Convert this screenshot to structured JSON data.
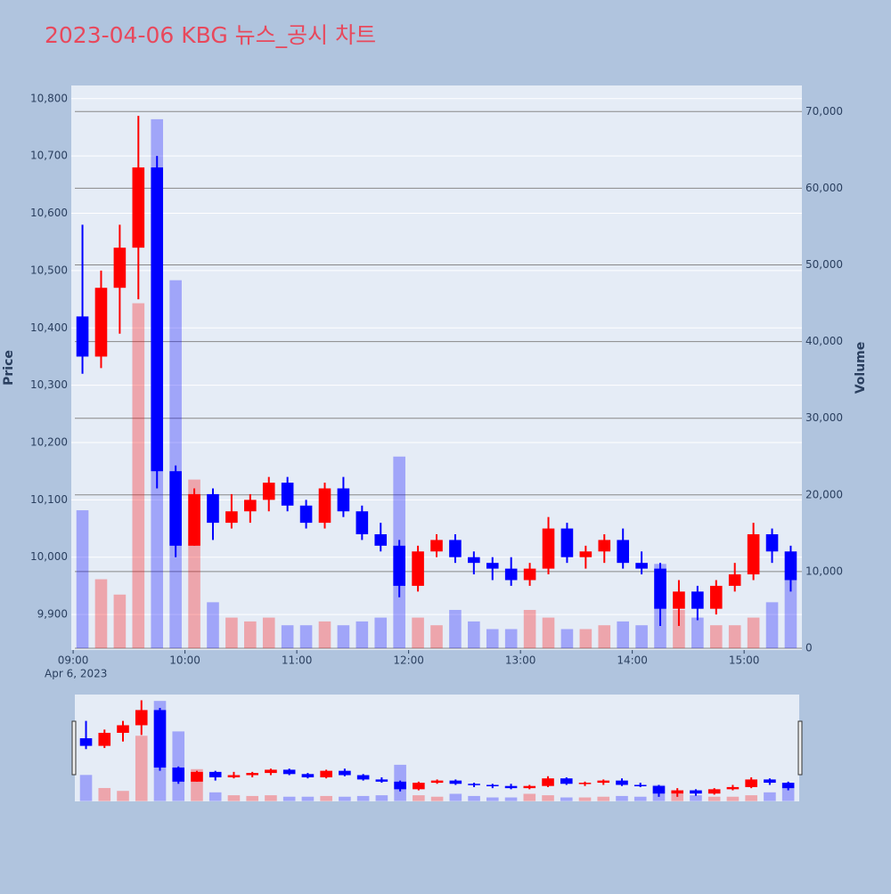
{
  "chart_data": {
    "type": "candlestick",
    "title": "2023-04-06 KBG 뉴스_공시 차트",
    "y_axis_label": "Price",
    "y2_axis_label": "Volume",
    "x_date_label": "Apr 6, 2023",
    "increasing_color": "#ff0000",
    "decreasing_color": "#0000ff",
    "x": [
      "2023-04-06 09:00",
      "2023-04-06 09:10",
      "2023-04-06 09:20",
      "2023-04-06 09:30",
      "2023-04-06 09:40",
      "2023-04-06 09:50",
      "2023-04-06 10:00",
      "2023-04-06 10:10",
      "2023-04-06 10:20",
      "2023-04-06 10:30",
      "2023-04-06 10:40",
      "2023-04-06 10:50",
      "2023-04-06 11:00",
      "2023-04-06 11:10",
      "2023-04-06 11:20",
      "2023-04-06 11:30",
      "2023-04-06 11:40",
      "2023-04-06 11:50",
      "2023-04-06 12:00",
      "2023-04-06 12:10",
      "2023-04-06 12:20",
      "2023-04-06 12:30",
      "2023-04-06 12:40",
      "2023-04-06 12:50",
      "2023-04-06 13:00",
      "2023-04-06 13:10",
      "2023-04-06 13:20",
      "2023-04-06 13:30",
      "2023-04-06 13:40",
      "2023-04-06 13:50",
      "2023-04-06 14:00",
      "2023-04-06 14:10",
      "2023-04-06 14:20",
      "2023-04-06 14:30",
      "2023-04-06 14:40",
      "2023-04-06 14:50",
      "2023-04-06 15:00",
      "2023-04-06 15:10",
      "2023-04-06 15:20"
    ],
    "open": [
      10420,
      10350,
      10470,
      10540,
      10680,
      10150,
      10020,
      10110,
      10060,
      10080,
      10100,
      10130,
      10090,
      10060,
      10120,
      10080,
      10040,
      10020,
      9950,
      10010,
      10030,
      10000,
      9990,
      9980,
      9960,
      9980,
      10050,
      10000,
      10010,
      10030,
      9990,
      9980,
      9910,
      9940,
      9910,
      9950,
      9970,
      10040,
      10010
    ],
    "high": [
      10580,
      10500,
      10580,
      10770,
      10700,
      10160,
      10120,
      10120,
      10110,
      10110,
      10140,
      10140,
      10100,
      10130,
      10140,
      10090,
      10060,
      10030,
      10020,
      10040,
      10040,
      10010,
      10000,
      10000,
      9990,
      10070,
      10060,
      10020,
      10040,
      10050,
      10010,
      9990,
      9960,
      9950,
      9960,
      9990,
      10060,
      10050,
      10020
    ],
    "low": [
      10320,
      10330,
      10390,
      10450,
      10120,
      10000,
      10020,
      10030,
      10050,
      10060,
      10080,
      10080,
      10050,
      10050,
      10070,
      10030,
      10010,
      9930,
      9940,
      10000,
      9990,
      9970,
      9960,
      9950,
      9950,
      9970,
      9990,
      9980,
      9990,
      9980,
      9970,
      9880,
      9880,
      9890,
      9900,
      9940,
      9960,
      9990,
      9940
    ],
    "close": [
      10350,
      10470,
      10540,
      10680,
      10150,
      10020,
      10110,
      10060,
      10080,
      10100,
      10130,
      10090,
      10060,
      10120,
      10080,
      10040,
      10020,
      9950,
      10010,
      10030,
      10000,
      9990,
      9980,
      9960,
      9980,
      10050,
      10000,
      10010,
      10030,
      9990,
      9980,
      9910,
      9940,
      9910,
      9950,
      9970,
      10040,
      10010,
      9960
    ],
    "volume": [
      18000,
      9000,
      7000,
      45000,
      69000,
      48000,
      22000,
      6000,
      4000,
      3500,
      4000,
      3000,
      3000,
      3500,
      3000,
      3500,
      4000,
      25000,
      4000,
      3000,
      5000,
      3500,
      2500,
      2500,
      5000,
      4000,
      2500,
      2500,
      3000,
      3500,
      3000,
      11000,
      5000,
      4000,
      3000,
      3000,
      4000,
      6000,
      9000
    ],
    "xlim": [
      "2023-04-06 08:59",
      "2023-04-06 15:31"
    ],
    "xticks": [
      {
        "value": "2023-04-06 09:00",
        "label": "09:00"
      },
      {
        "value": "2023-04-06 10:00",
        "label": "10:00"
      },
      {
        "value": "2023-04-06 11:00",
        "label": "11:00"
      },
      {
        "value": "2023-04-06 12:00",
        "label": "12:00"
      },
      {
        "value": "2023-04-06 13:00",
        "label": "13:00"
      },
      {
        "value": "2023-04-06 14:00",
        "label": "14:00"
      },
      {
        "value": "2023-04-06 15:00",
        "label": "15:00"
      }
    ],
    "ylim": [
      9838,
      10823
    ],
    "yticks": [
      {
        "value": 9900,
        "label": "9,900"
      },
      {
        "value": 10000,
        "label": "10,000"
      },
      {
        "value": 10100,
        "label": "10,100"
      },
      {
        "value": 10200,
        "label": "10,200"
      },
      {
        "value": 10300,
        "label": "10,300"
      },
      {
        "value": 10400,
        "label": "10,400"
      },
      {
        "value": 10500,
        "label": "10,500"
      },
      {
        "value": 10600,
        "label": "10,600"
      },
      {
        "value": 10700,
        "label": "10,700"
      },
      {
        "value": 10800,
        "label": "10,800"
      }
    ],
    "y2lim": [
      -230,
      73400
    ],
    "y2ticks": [
      0,
      {
        "value": 10000,
        "label": "10,000"
      },
      {
        "value": 20000,
        "label": "20,000"
      },
      {
        "value": 30000,
        "label": "30,000"
      },
      {
        "value": 40000,
        "label": "40,000"
      },
      {
        "value": 50000,
        "label": "50,000"
      },
      {
        "value": 60000,
        "label": "60,000"
      },
      {
        "value": 70000,
        "label": "70,000"
      }
    ],
    "grid": true,
    "rangeslider": true
  }
}
